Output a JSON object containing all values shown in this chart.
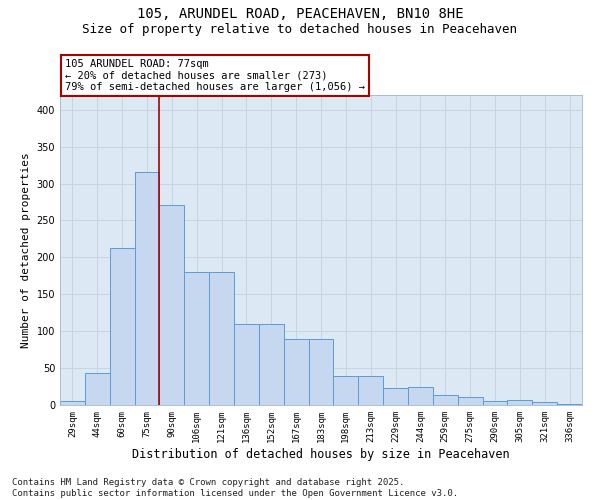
{
  "title_line1": "105, ARUNDEL ROAD, PEACEHAVEN, BN10 8HE",
  "title_line2": "Size of property relative to detached houses in Peacehaven",
  "xlabel": "Distribution of detached houses by size in Peacehaven",
  "ylabel": "Number of detached properties",
  "categories": [
    "29sqm",
    "44sqm",
    "60sqm",
    "75sqm",
    "90sqm",
    "106sqm",
    "121sqm",
    "136sqm",
    "152sqm",
    "167sqm",
    "183sqm",
    "198sqm",
    "213sqm",
    "229sqm",
    "244sqm",
    "259sqm",
    "275sqm",
    "290sqm",
    "305sqm",
    "321sqm",
    "336sqm"
  ],
  "bar_values": [
    5,
    44,
    213,
    316,
    271,
    180,
    180,
    110,
    110,
    90,
    90,
    39,
    39,
    23,
    25,
    13,
    11,
    6,
    7,
    4,
    2
  ],
  "bar_color": "#c5d8f0",
  "bar_edge_color": "#5b9bd5",
  "vline_color": "#aa0000",
  "annotation_text": "105 ARUNDEL ROAD: 77sqm\n← 20% of detached houses are smaller (273)\n79% of semi-detached houses are larger (1,056) →",
  "ylim": [
    0,
    420
  ],
  "yticks": [
    0,
    50,
    100,
    150,
    200,
    250,
    300,
    350,
    400
  ],
  "grid_color": "#c8d4e0",
  "bg_color": "#dce8f4",
  "footer_line1": "Contains HM Land Registry data © Crown copyright and database right 2025.",
  "footer_line2": "Contains public sector information licensed under the Open Government Licence v3.0.",
  "title_fontsize": 10,
  "subtitle_fontsize": 9,
  "ylabel_fontsize": 8,
  "xlabel_fontsize": 8.5,
  "tick_fontsize": 6.5,
  "annot_fontsize": 7.5,
  "footer_fontsize": 6.5,
  "vline_x": 3.5
}
